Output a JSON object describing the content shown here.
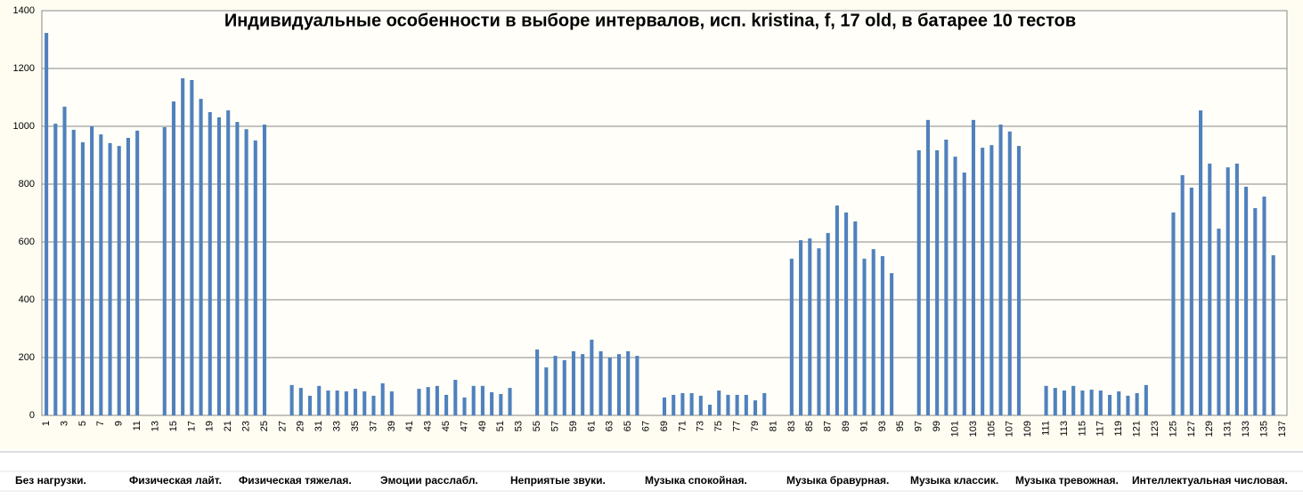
{
  "chart_data": {
    "type": "bar",
    "title": "Индивидуальные особенности в выборе интервалов, исп. kristina, f, 17 old, в батарее 10 тестов",
    "categories": [
      1,
      null,
      3,
      null,
      5,
      null,
      7,
      null,
      9,
      null,
      11,
      null,
      13,
      null,
      15,
      null,
      17,
      null,
      19,
      null,
      21,
      null,
      23,
      null,
      25,
      null,
      27,
      null,
      29,
      null,
      31,
      null,
      33,
      null,
      35,
      null,
      37,
      null,
      39,
      null,
      41,
      null,
      43,
      null,
      45,
      null,
      47,
      null,
      49,
      null,
      51,
      null,
      53,
      null,
      55,
      null,
      57,
      null,
      59,
      null,
      61,
      null,
      63,
      null,
      65,
      null,
      67,
      null,
      69,
      null,
      71,
      null,
      73,
      null,
      75,
      null,
      77,
      null,
      79,
      null,
      81,
      null,
      83,
      null,
      85,
      null,
      87,
      null,
      89,
      null,
      91,
      null,
      93,
      null,
      95,
      null,
      97,
      null,
      99,
      null,
      101,
      null,
      103,
      null,
      105,
      null,
      107,
      null,
      109,
      null,
      111,
      null,
      113,
      null,
      115,
      null,
      117,
      null,
      119,
      null,
      121,
      null,
      123,
      null,
      125,
      null,
      127,
      null,
      129,
      null,
      131,
      null,
      133,
      null,
      135,
      null,
      137
    ],
    "values": [
      1323,
      1009,
      1068,
      988,
      945,
      1000,
      972,
      942,
      932,
      960,
      985,
      0,
      0,
      997,
      1086,
      1166,
      1160,
      1095,
      1049,
      1031,
      1055,
      1015,
      990,
      951,
      1006,
      0,
      0,
      105,
      95,
      68,
      102,
      86,
      86,
      83,
      92,
      83,
      68,
      111,
      83,
      0,
      0,
      92,
      98,
      102,
      71,
      123,
      62,
      102,
      102,
      80,
      74,
      95,
      0,
      0,
      228,
      166,
      206,
      191,
      222,
      212,
      262,
      222,
      200,
      212,
      222,
      206,
      0,
      0,
      62,
      71,
      77,
      77,
      68,
      37,
      86,
      71,
      71,
      71,
      52,
      77,
      0,
      0,
      542,
      606,
      612,
      578,
      631,
      726,
      702,
      671,
      542,
      575,
      551,
      492,
      0,
      0,
      917,
      1022,
      917,
      954,
      895,
      840,
      1022,
      926,
      935,
      1006,
      982,
      932,
      0,
      0,
      102,
      95,
      86,
      102,
      86,
      89,
      86,
      71,
      83,
      68,
      77,
      105,
      0,
      0,
      702,
      831,
      788,
      1055,
      871,
      646,
      858,
      871,
      791,
      717,
      757,
      554,
      0
    ],
    "color": "#4f81bd",
    "ylim": [
      0,
      1400
    ],
    "yticks": [
      0,
      200,
      400,
      600,
      800,
      1000,
      1200,
      1400
    ],
    "grid": true,
    "group_labels": [
      "Без нагрузки.",
      "Физическая лайт.",
      "Физическая тяжелая.",
      "Эмоции расслабл.",
      "Неприятые звуки.",
      "Музыка спокойная.",
      "Музыка бравурная.",
      "Музыка классик.",
      "Музыка тревожная.",
      "Интеллектуальная числовая."
    ]
  }
}
